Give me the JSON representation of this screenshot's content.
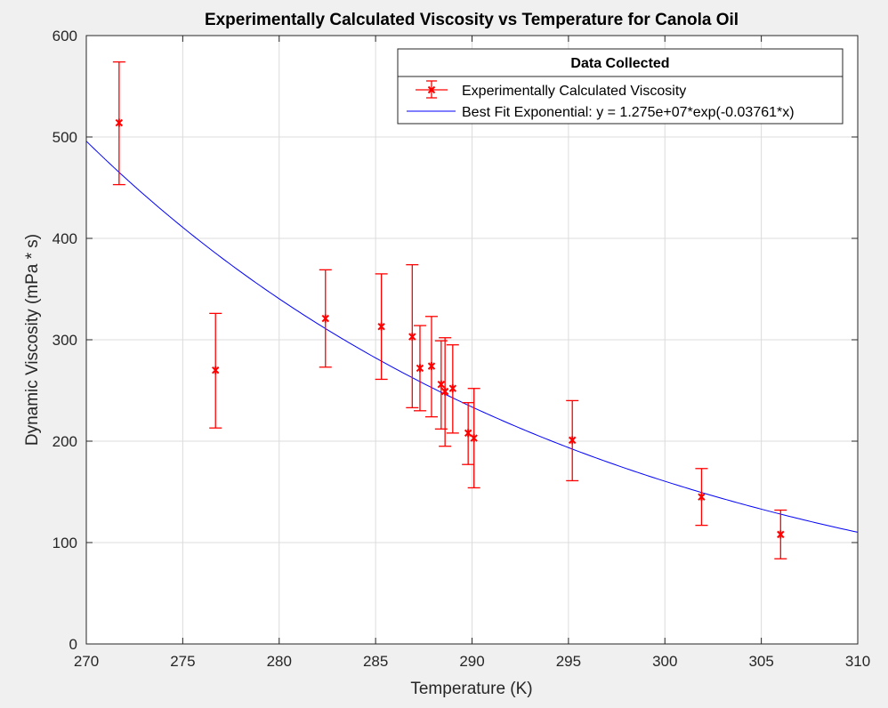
{
  "chart_data": {
    "type": "scatter",
    "title": "Experimentally Calculated Viscosity vs Temperature for Canola Oil",
    "xlabel": "Temperature (K)",
    "ylabel": "Dynamic Viscosity (mPa * s)",
    "xlim": [
      270,
      310
    ],
    "ylim": [
      0,
      600
    ],
    "xticks": [
      "270",
      "275",
      "280",
      "285",
      "290",
      "295",
      "300",
      "305",
      "310"
    ],
    "yticks": [
      "0",
      "100",
      "200",
      "300",
      "400",
      "500",
      "600"
    ],
    "grid": true,
    "legend": {
      "title": "Data Collected",
      "placement": "top-right",
      "entries": [
        "Experimentally Calculated Viscosity",
        "Best Fit Exponential: y = 1.275e+07*exp(-0.03761*x)"
      ]
    },
    "series": [
      {
        "name": "Experimentally Calculated Viscosity",
        "style": "errorbar",
        "color": "#ff0000",
        "points": [
          {
            "x": 271.7,
            "y": 514,
            "low": 453,
            "high": 574
          },
          {
            "x": 276.7,
            "y": 270,
            "low": 213,
            "high": 326
          },
          {
            "x": 282.4,
            "y": 321,
            "low": 273,
            "high": 369
          },
          {
            "x": 285.3,
            "y": 313,
            "low": 261,
            "high": 365
          },
          {
            "x": 286.9,
            "y": 303,
            "low": 233,
            "high": 374
          },
          {
            "x": 287.3,
            "y": 272,
            "low": 230,
            "high": 314
          },
          {
            "x": 287.9,
            "y": 274,
            "low": 224,
            "high": 323
          },
          {
            "x": 288.4,
            "y": 256,
            "low": 212,
            "high": 299
          },
          {
            "x": 288.6,
            "y": 249,
            "low": 195,
            "high": 302
          },
          {
            "x": 289.0,
            "y": 252,
            "low": 208,
            "high": 295
          },
          {
            "x": 289.8,
            "y": 208,
            "low": 177,
            "high": 238
          },
          {
            "x": 290.1,
            "y": 203,
            "low": 154,
            "high": 252
          },
          {
            "x": 295.2,
            "y": 201,
            "low": 161,
            "high": 240
          },
          {
            "x": 301.9,
            "y": 145,
            "low": 117,
            "high": 173
          },
          {
            "x": 306.0,
            "y": 108,
            "low": 84,
            "high": 132
          }
        ]
      },
      {
        "name": "Best Fit Exponential: y = 1.275e+07*exp(-0.03761*x)",
        "style": "line",
        "color": "#0000ff",
        "a": 12750000,
        "b": -0.03761
      }
    ]
  }
}
